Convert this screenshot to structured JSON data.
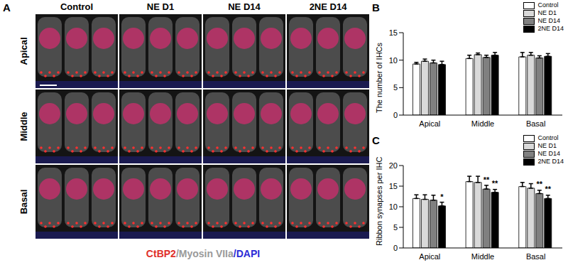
{
  "panel_a": {
    "label": "A",
    "columns": [
      "Control",
      "NE D1",
      "NE D14",
      "2NE D14"
    ],
    "rows": [
      "Apical",
      "Middle",
      "Basal"
    ],
    "stain": [
      {
        "text": "CtBP2",
        "color": "#e0302a"
      },
      {
        "text": "/Myosin VIIa",
        "color": "#9a9a9a"
      },
      {
        "text": "/DAPI",
        "color": "#2b2bd6"
      }
    ]
  },
  "chart_data": [
    {
      "panel": "B",
      "type": "bar",
      "y_label": "The number of IHCs",
      "categories": [
        "Apical",
        "Middle",
        "Basal"
      ],
      "ylim": [
        0,
        15
      ],
      "yticks": [
        0,
        5,
        10,
        15
      ],
      "legend": "upper right",
      "series": [
        {
          "name": "Control",
          "color": "#ffffff",
          "values": [
            9.3,
            10.3,
            10.6
          ],
          "errors": [
            0.3,
            0.6,
            0.8
          ]
        },
        {
          "name": "NE D1",
          "color": "#d9d9d9",
          "values": [
            9.8,
            11.0,
            10.9
          ],
          "errors": [
            0.4,
            0.3,
            0.5
          ]
        },
        {
          "name": "NE D14",
          "color": "#808080",
          "values": [
            9.5,
            10.5,
            10.4
          ],
          "errors": [
            0.5,
            0.4,
            0.4
          ]
        },
        {
          "name": "2NE D14",
          "color": "#000000",
          "values": [
            9.2,
            10.9,
            10.7
          ],
          "errors": [
            0.6,
            0.5,
            0.5
          ]
        }
      ]
    },
    {
      "panel": "C",
      "type": "bar",
      "y_label": "Ribbon synapses per IHC",
      "categories": [
        "Apical",
        "Middle",
        "Basal"
      ],
      "ylim": [
        0,
        20
      ],
      "yticks": [
        0,
        5,
        10,
        15,
        20
      ],
      "legend": "upper right",
      "series": [
        {
          "name": "Control",
          "color": "#ffffff",
          "values": [
            12.0,
            16.1,
            14.9
          ],
          "errors": [
            0.9,
            1.3,
            1.0
          ],
          "significance": [
            null,
            null,
            null
          ]
        },
        {
          "name": "NE D1",
          "color": "#d9d9d9",
          "values": [
            11.8,
            15.9,
            14.5
          ],
          "errors": [
            1.1,
            1.5,
            1.1
          ],
          "significance": [
            null,
            null,
            null
          ]
        },
        {
          "name": "NE D14",
          "color": "#808080",
          "values": [
            11.6,
            14.3,
            13.2
          ],
          "errors": [
            1.2,
            0.9,
            0.8
          ],
          "significance": [
            null,
            "**",
            "**"
          ]
        },
        {
          "name": "2NE D14",
          "color": "#000000",
          "values": [
            10.2,
            13.5,
            12.0
          ],
          "errors": [
            0.9,
            0.7,
            0.8
          ],
          "significance": [
            "*",
            "**",
            "**"
          ]
        }
      ]
    }
  ]
}
